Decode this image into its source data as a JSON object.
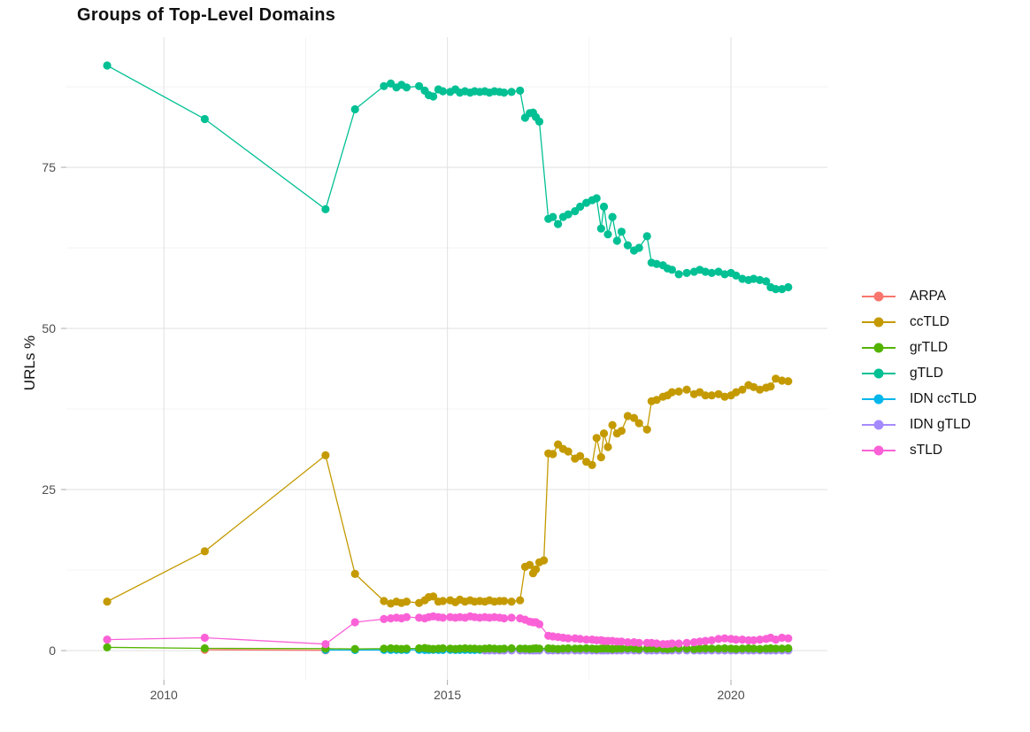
{
  "page": {
    "background": "#ffffff"
  },
  "chart_data": {
    "type": "line",
    "title": "Groups of Top-Level Domains",
    "xlabel": "",
    "ylabel": "URLs %",
    "xlim": [
      2008.28,
      2021.7
    ],
    "ylim": [
      -4.53,
      95.2
    ],
    "grid": {
      "x_major": [
        2010,
        2015,
        2020
      ],
      "x_minor": [
        2012.5,
        2017.5
      ],
      "y_major": [
        0,
        25,
        50,
        75
      ],
      "y_minor": [
        12.5,
        37.5,
        62.5,
        87.5
      ]
    },
    "x_ticks": [
      {
        "label": "2010",
        "value": 2010
      },
      {
        "label": "2015",
        "value": 2015
      },
      {
        "label": "2020",
        "value": 2020
      }
    ],
    "y_ticks": [
      {
        "label": "0",
        "value": 0
      },
      {
        "label": "25",
        "value": 25
      },
      {
        "label": "50",
        "value": 50
      },
      {
        "label": "75",
        "value": 75
      }
    ],
    "legend_position": "right",
    "colors": {
      "grid_major": "#e3e3e3",
      "grid_minor": "#f2f2f2",
      "tick": "#aaaaaa",
      "axis_text": "#4d4d4d"
    },
    "series": [
      {
        "name": "ARPA",
        "color": "#F8766D",
        "x": [
          2010.72,
          2012.85
        ],
        "y": [
          0.12,
          0.05
        ]
      },
      {
        "name": "ccTLD",
        "color": "#C49A00",
        "x": [
          2009.0,
          2010.72,
          2012.85,
          2013.37,
          2013.88,
          2014.0,
          2014.1,
          2014.19,
          2014.28,
          2014.5,
          2014.6,
          2014.67,
          2014.75,
          2014.84,
          2014.92,
          2015.05,
          2015.14,
          2015.22,
          2015.31,
          2015.4,
          2015.48,
          2015.57,
          2015.66,
          2015.74,
          2015.83,
          2015.92,
          2016.0,
          2016.13,
          2016.28,
          2016.37,
          2016.45,
          2016.51,
          2016.56,
          2016.62,
          2016.7,
          2016.78,
          2016.86,
          2016.95,
          2017.04,
          2017.13,
          2017.25,
          2017.34,
          2017.45,
          2017.55,
          2017.63,
          2017.71,
          2017.76,
          2017.83,
          2017.91,
          2017.99,
          2018.07,
          2018.18,
          2018.29,
          2018.38,
          2018.52,
          2018.6,
          2018.69,
          2018.8,
          2018.88,
          2018.96,
          2019.08,
          2019.22,
          2019.35,
          2019.45,
          2019.55,
          2019.66,
          2019.78,
          2019.89,
          2020.0,
          2020.09,
          2020.2,
          2020.31,
          2020.4,
          2020.51,
          2020.62,
          2020.7,
          2020.79,
          2020.9,
          2021.01
        ],
        "y": [
          7.6,
          15.4,
          30.3,
          11.9,
          7.7,
          7.3,
          7.6,
          7.4,
          7.6,
          7.4,
          7.8,
          8.3,
          8.4,
          7.6,
          7.7,
          7.8,
          7.5,
          7.9,
          7.6,
          7.8,
          7.6,
          7.7,
          7.6,
          7.8,
          7.6,
          7.7,
          7.7,
          7.6,
          7.8,
          13.0,
          13.3,
          12.0,
          12.6,
          13.7,
          14.0,
          30.6,
          30.5,
          32.0,
          31.3,
          30.9,
          29.8,
          30.2,
          29.3,
          28.8,
          33.0,
          30.0,
          33.7,
          31.6,
          35.0,
          33.7,
          34.1,
          36.4,
          36.1,
          35.3,
          34.3,
          38.7,
          38.9,
          39.4,
          39.6,
          40.1,
          40.2,
          40.5,
          39.8,
          40.1,
          39.6,
          39.6,
          39.8,
          39.4,
          39.6,
          40.1,
          40.5,
          41.2,
          40.9,
          40.5,
          40.8,
          41.0,
          42.2,
          41.9,
          41.8
        ]
      },
      {
        "name": "grTLD",
        "color": "#53B400",
        "x": [
          2009.0,
          2010.72,
          2012.85,
          2013.37,
          2013.88,
          2014.0,
          2014.1,
          2014.19,
          2014.28,
          2014.5,
          2014.6,
          2014.67,
          2014.75,
          2014.84,
          2014.92,
          2015.05,
          2015.14,
          2015.22,
          2015.31,
          2015.4,
          2015.48,
          2015.57,
          2015.66,
          2015.74,
          2015.83,
          2015.92,
          2016.0,
          2016.13,
          2016.28,
          2016.37,
          2016.45,
          2016.51,
          2016.56,
          2016.62,
          2016.78,
          2016.86,
          2016.95,
          2017.04,
          2017.13,
          2017.25,
          2017.34,
          2017.45,
          2017.55,
          2017.63,
          2017.71,
          2017.76,
          2017.83,
          2017.91,
          2017.99,
          2018.07,
          2018.18,
          2018.29,
          2018.38,
          2018.52,
          2018.6,
          2018.69,
          2018.8,
          2018.88,
          2018.96,
          2019.08,
          2019.22,
          2019.35,
          2019.45,
          2019.55,
          2019.66,
          2019.78,
          2019.89,
          2020.0,
          2020.09,
          2020.2,
          2020.31,
          2020.4,
          2020.51,
          2020.62,
          2020.7,
          2020.79,
          2020.9,
          2021.01
        ],
        "y": [
          0.5,
          0.35,
          0.3,
          0.25,
          0.3,
          0.35,
          0.3,
          0.25,
          0.3,
          0.35,
          0.4,
          0.3,
          0.25,
          0.3,
          0.35,
          0.3,
          0.25,
          0.3,
          0.35,
          0.3,
          0.3,
          0.25,
          0.3,
          0.35,
          0.3,
          0.25,
          0.3,
          0.35,
          0.3,
          0.3,
          0.25,
          0.3,
          0.35,
          0.3,
          0.35,
          0.3,
          0.25,
          0.3,
          0.35,
          0.3,
          0.3,
          0.35,
          0.3,
          0.25,
          0.3,
          0.35,
          0.3,
          0.25,
          0.3,
          0.3,
          0.35,
          0.3,
          0.25,
          0.3,
          0.35,
          0.3,
          0.3,
          0.25,
          0.3,
          0.35,
          0.3,
          0.25,
          0.3,
          0.35,
          0.3,
          0.3,
          0.35,
          0.3,
          0.25,
          0.3,
          0.35,
          0.3,
          0.25,
          0.3,
          0.35,
          0.3,
          0.3,
          0.35
        ]
      },
      {
        "name": "gTLD",
        "color": "#00C094",
        "x": [
          2009.0,
          2010.72,
          2012.85,
          2013.37,
          2013.88,
          2014.0,
          2014.1,
          2014.19,
          2014.28,
          2014.5,
          2014.6,
          2014.67,
          2014.75,
          2014.84,
          2014.92,
          2015.05,
          2015.14,
          2015.22,
          2015.31,
          2015.4,
          2015.48,
          2015.57,
          2015.66,
          2015.74,
          2015.83,
          2015.92,
          2016.0,
          2016.13,
          2016.28,
          2016.37,
          2016.45,
          2016.51,
          2016.56,
          2016.62,
          2016.78,
          2016.86,
          2016.95,
          2017.04,
          2017.13,
          2017.25,
          2017.34,
          2017.45,
          2017.55,
          2017.63,
          2017.71,
          2017.76,
          2017.83,
          2017.91,
          2017.99,
          2018.07,
          2018.18,
          2018.29,
          2018.38,
          2018.52,
          2018.6,
          2018.69,
          2018.8,
          2018.88,
          2018.96,
          2019.08,
          2019.22,
          2019.35,
          2019.45,
          2019.55,
          2019.66,
          2019.78,
          2019.89,
          2020.0,
          2020.09,
          2020.2,
          2020.31,
          2020.4,
          2020.51,
          2020.62,
          2020.7,
          2020.79,
          2020.9,
          2021.01
        ],
        "y": [
          90.8,
          82.5,
          68.5,
          84.0,
          87.6,
          88.0,
          87.4,
          87.8,
          87.4,
          87.6,
          86.9,
          86.2,
          86.0,
          87.1,
          86.8,
          86.7,
          87.1,
          86.6,
          86.8,
          86.6,
          86.8,
          86.7,
          86.8,
          86.6,
          86.8,
          86.7,
          86.6,
          86.7,
          86.9,
          82.7,
          83.4,
          83.5,
          82.8,
          82.1,
          67.0,
          67.3,
          66.2,
          67.3,
          67.7,
          68.2,
          68.9,
          69.5,
          69.9,
          70.2,
          65.5,
          68.9,
          64.6,
          67.3,
          63.6,
          65.0,
          62.9,
          62.1,
          62.5,
          64.3,
          60.2,
          60.0,
          59.8,
          59.3,
          59.1,
          58.4,
          58.6,
          58.8,
          59.1,
          58.8,
          58.6,
          58.8,
          58.4,
          58.6,
          58.2,
          57.7,
          57.5,
          57.7,
          57.5,
          57.3,
          56.4,
          56.1,
          56.1,
          56.4
        ]
      },
      {
        "name": "IDN ccTLD",
        "color": "#00B6EB",
        "x": [
          2012.85,
          2013.37,
          2013.88,
          2014.0,
          2014.1,
          2014.19,
          2014.28,
          2014.5,
          2014.6,
          2014.67,
          2014.75,
          2014.84,
          2014.92,
          2015.05,
          2015.14,
          2015.22,
          2015.31,
          2015.4,
          2015.48,
          2015.57,
          2015.66,
          2015.74,
          2015.83,
          2015.92,
          2016.0,
          2016.13,
          2016.28,
          2016.37,
          2016.45,
          2016.51,
          2016.56,
          2016.62,
          2016.78,
          2016.86,
          2016.95,
          2017.04,
          2017.13,
          2017.25,
          2017.34,
          2017.45,
          2017.55,
          2017.63,
          2017.71,
          2017.76,
          2017.83,
          2017.91,
          2017.99,
          2018.07,
          2018.18,
          2018.29,
          2018.38,
          2018.52,
          2018.6,
          2018.69,
          2018.8,
          2018.88,
          2018.96,
          2019.08,
          2019.22,
          2019.35,
          2019.45,
          2019.55,
          2019.66,
          2019.78,
          2019.89,
          2020.0,
          2020.09,
          2020.2,
          2020.31,
          2020.4,
          2020.51,
          2020.62,
          2020.7,
          2020.79,
          2020.9,
          2021.01
        ],
        "y": [
          0.1,
          0.08,
          0.1,
          0.1,
          0.12,
          0.1,
          0.1,
          0.12,
          0.1,
          0.1,
          0.12,
          0.1,
          0.1,
          0.12,
          0.1,
          0.1,
          0.12,
          0.1,
          0.1,
          0.12,
          0.1,
          0.1,
          0.12,
          0.1,
          0.1,
          0.12,
          0.1,
          0.1,
          0.12,
          0.1,
          0.1,
          0.12,
          0.1,
          0.1,
          0.12,
          0.1,
          0.1,
          0.12,
          0.1,
          0.1,
          0.12,
          0.1,
          0.1,
          0.12,
          0.1,
          0.1,
          0.12,
          0.1,
          0.1,
          0.12,
          0.1,
          0.1,
          0.12,
          0.1,
          0.1,
          0.12,
          0.1,
          0.1,
          0.12,
          0.1,
          0.1,
          0.12,
          0.1,
          0.1,
          0.12,
          0.1,
          0.1,
          0.12,
          0.1,
          0.1,
          0.12,
          0.1,
          0.1,
          0.12,
          0.1,
          0.1
        ]
      },
      {
        "name": "IDN gTLD",
        "color": "#A58AFF",
        "x": [
          2015.66,
          2015.74,
          2015.83,
          2015.92,
          2016.0,
          2016.13,
          2016.28,
          2016.37,
          2016.45,
          2016.51,
          2016.56,
          2016.62,
          2016.78,
          2016.86,
          2016.95,
          2017.04,
          2017.13,
          2017.25,
          2017.34,
          2017.45,
          2017.55,
          2017.63,
          2017.71,
          2017.76,
          2017.83,
          2017.91,
          2017.99,
          2018.07,
          2018.18,
          2018.29,
          2018.38,
          2018.52,
          2018.6,
          2018.69,
          2018.8,
          2018.88,
          2018.96,
          2019.08,
          2019.22,
          2019.35,
          2019.45,
          2019.55,
          2019.66,
          2019.78,
          2019.89,
          2020.0,
          2020.09,
          2020.2,
          2020.31,
          2020.4,
          2020.51,
          2020.62,
          2020.7,
          2020.79,
          2020.9,
          2021.01
        ],
        "y": [
          0.02,
          0.02,
          0.02,
          0.02,
          0.02,
          0.02,
          0.02,
          0.02,
          0.02,
          0.02,
          0.02,
          0.02,
          0.02,
          0.02,
          0.02,
          0.02,
          0.02,
          0.02,
          0.02,
          0.02,
          0.02,
          0.02,
          0.02,
          0.02,
          0.02,
          0.02,
          0.02,
          0.02,
          0.02,
          0.02,
          0.02,
          0.02,
          0.02,
          0.02,
          0.02,
          0.02,
          0.02,
          0.02,
          0.02,
          0.02,
          0.02,
          0.02,
          0.02,
          0.02,
          0.02,
          0.02,
          0.02,
          0.02,
          0.02,
          0.02,
          0.02,
          0.02,
          0.02,
          0.02,
          0.02,
          0.02
        ]
      },
      {
        "name": "sTLD",
        "color": "#FB61D7",
        "x": [
          2009.0,
          2010.72,
          2012.85,
          2013.37,
          2013.88,
          2014.0,
          2014.1,
          2014.19,
          2014.28,
          2014.5,
          2014.6,
          2014.67,
          2014.75,
          2014.84,
          2014.92,
          2015.05,
          2015.14,
          2015.22,
          2015.31,
          2015.4,
          2015.48,
          2015.57,
          2015.66,
          2015.74,
          2015.83,
          2015.92,
          2016.0,
          2016.13,
          2016.28,
          2016.37,
          2016.45,
          2016.51,
          2016.56,
          2016.62,
          2016.78,
          2016.86,
          2016.95,
          2017.04,
          2017.13,
          2017.25,
          2017.34,
          2017.45,
          2017.55,
          2017.63,
          2017.71,
          2017.76,
          2017.83,
          2017.91,
          2017.99,
          2018.07,
          2018.18,
          2018.29,
          2018.38,
          2018.52,
          2018.6,
          2018.69,
          2018.8,
          2018.88,
          2018.96,
          2019.08,
          2019.22,
          2019.35,
          2019.45,
          2019.55,
          2019.66,
          2019.78,
          2019.89,
          2020.0,
          2020.09,
          2020.2,
          2020.31,
          2020.4,
          2020.51,
          2020.62,
          2020.7,
          2020.79,
          2020.9,
          2021.01
        ],
        "y": [
          1.7,
          2.0,
          1.0,
          4.4,
          4.9,
          5.0,
          5.1,
          5.0,
          5.2,
          5.1,
          5.0,
          5.2,
          5.3,
          5.2,
          5.1,
          5.2,
          5.1,
          5.2,
          5.1,
          5.3,
          5.2,
          5.1,
          5.2,
          5.1,
          5.2,
          5.1,
          5.0,
          5.1,
          5.0,
          4.8,
          4.5,
          4.4,
          4.4,
          4.1,
          2.3,
          2.2,
          2.1,
          2.0,
          1.9,
          1.9,
          1.8,
          1.7,
          1.7,
          1.6,
          1.6,
          1.5,
          1.5,
          1.5,
          1.4,
          1.4,
          1.3,
          1.3,
          1.2,
          1.2,
          1.2,
          1.1,
          1.0,
          1.0,
          1.1,
          1.1,
          1.2,
          1.3,
          1.4,
          1.5,
          1.6,
          1.8,
          1.9,
          1.8,
          1.7,
          1.7,
          1.6,
          1.6,
          1.7,
          1.8,
          2.0,
          1.7,
          2.0,
          1.9
        ]
      }
    ]
  }
}
